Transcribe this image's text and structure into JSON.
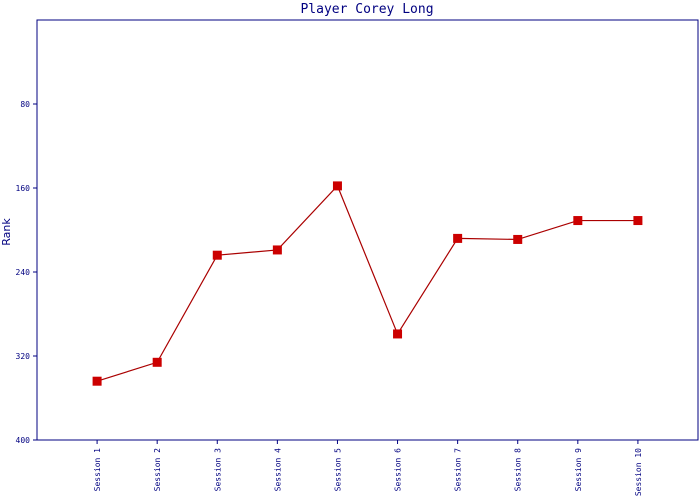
{
  "chart_data": {
    "type": "line",
    "title": "Player Corey Long",
    "y_label": "Rank",
    "categories": [
      "Session 1",
      "Session 2",
      "Session 3",
      "Session 4",
      "Session 5",
      "Session 6",
      "Session 7",
      "Session 8",
      "Session 9",
      "Session 10"
    ],
    "series": [
      {
        "name": "Rank",
        "color": "#aa0000",
        "marker_color": "#cc0000",
        "values": [
          344,
          326,
          224,
          219,
          158,
          299,
          208,
          209,
          191,
          191
        ]
      }
    ],
    "ylim": [
      400,
      0
    ],
    "yticks": [
      80,
      160,
      240,
      320,
      400
    ]
  }
}
